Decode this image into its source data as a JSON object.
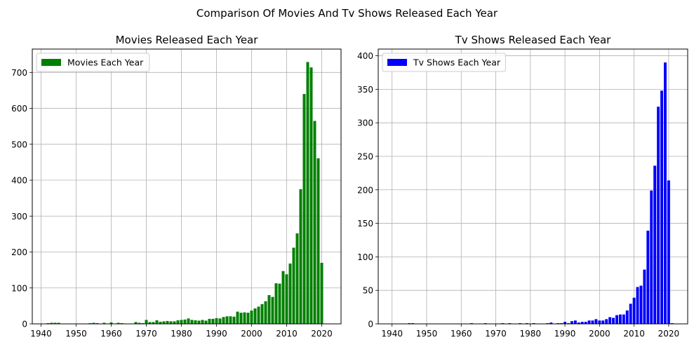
{
  "figure": {
    "suptitle": "Comparison Of Movies And Tv Shows Released Each Year"
  },
  "chart_data": [
    {
      "type": "bar",
      "title": "Movies Released Each Year",
      "xlabel": "",
      "ylabel": "",
      "color": "#008000",
      "grid": true,
      "legend": "top-left",
      "xlim": [
        1937.5,
        2025.5
      ],
      "ylim": [
        0,
        765
      ],
      "xticks": [
        1940,
        1950,
        1960,
        1970,
        1980,
        1990,
        2000,
        2010,
        2020
      ],
      "yticks": [
        0,
        100,
        200,
        300,
        400,
        500,
        600,
        700
      ],
      "series": [
        {
          "name": "Movies Each Year",
          "x": [
            1942,
            1943,
            1944,
            1945,
            1946,
            1947,
            1954,
            1955,
            1956,
            1958,
            1959,
            1960,
            1962,
            1963,
            1964,
            1966,
            1967,
            1968,
            1969,
            1970,
            1971,
            1972,
            1973,
            1974,
            1975,
            1976,
            1977,
            1978,
            1979,
            1980,
            1981,
            1982,
            1983,
            1984,
            1985,
            1986,
            1987,
            1988,
            1989,
            1990,
            1991,
            1992,
            1993,
            1994,
            1995,
            1996,
            1997,
            1998,
            1999,
            2000,
            2001,
            2002,
            2003,
            2004,
            2005,
            2006,
            2007,
            2008,
            2009,
            2010,
            2011,
            2012,
            2013,
            2014,
            2015,
            2016,
            2017,
            2018,
            2019,
            2020,
            2021
          ],
          "values": [
            2,
            3,
            3,
            3,
            1,
            1,
            2,
            3,
            2,
            3,
            1,
            4,
            3,
            2,
            1,
            1,
            5,
            3,
            2,
            11,
            5,
            5,
            10,
            6,
            7,
            8,
            7,
            7,
            10,
            11,
            12,
            15,
            11,
            10,
            9,
            11,
            9,
            14,
            14,
            16,
            15,
            19,
            21,
            21,
            20,
            34,
            31,
            32,
            31,
            37,
            43,
            48,
            55,
            63,
            80,
            75,
            113,
            112,
            147,
            138,
            168,
            212,
            252,
            375,
            640,
            729,
            714,
            565,
            461,
            170,
            1
          ]
        }
      ]
    },
    {
      "type": "bar",
      "title": "Tv Shows Released Each Year",
      "xlabel": "",
      "ylabel": "",
      "color": "#0000ff",
      "grid": true,
      "legend": "top-left",
      "xlim": [
        1936.0,
        2025.5
      ],
      "ylim": [
        0,
        410
      ],
      "xticks": [
        1940,
        1950,
        1960,
        1970,
        1980,
        1990,
        2000,
        2010,
        2020
      ],
      "yticks": [
        0,
        50,
        100,
        150,
        200,
        250,
        300,
        350,
        400
      ],
      "series": [
        {
          "name": "Tv Shows Each Year",
          "x": [
            1945,
            1946,
            1963,
            1967,
            1972,
            1974,
            1977,
            1979,
            1981,
            1985,
            1986,
            1988,
            1989,
            1990,
            1991,
            1992,
            1993,
            1994,
            1995,
            1996,
            1997,
            1998,
            1999,
            2000,
            2001,
            2002,
            2003,
            2004,
            2005,
            2006,
            2007,
            2008,
            2009,
            2010,
            2011,
            2012,
            2013,
            2014,
            2015,
            2016,
            2017,
            2018,
            2019,
            2020,
            2021
          ],
          "values": [
            1,
            1,
            1,
            1,
            1,
            1,
            1,
            1,
            1,
            1,
            2,
            1,
            1,
            3,
            1,
            4,
            5,
            2,
            3,
            3,
            5,
            5,
            7,
            5,
            5,
            7,
            10,
            9,
            13,
            14,
            14,
            20,
            30,
            39,
            55,
            57,
            81,
            139,
            199,
            236,
            324,
            348,
            390,
            214,
            1
          ]
        }
      ]
    }
  ]
}
